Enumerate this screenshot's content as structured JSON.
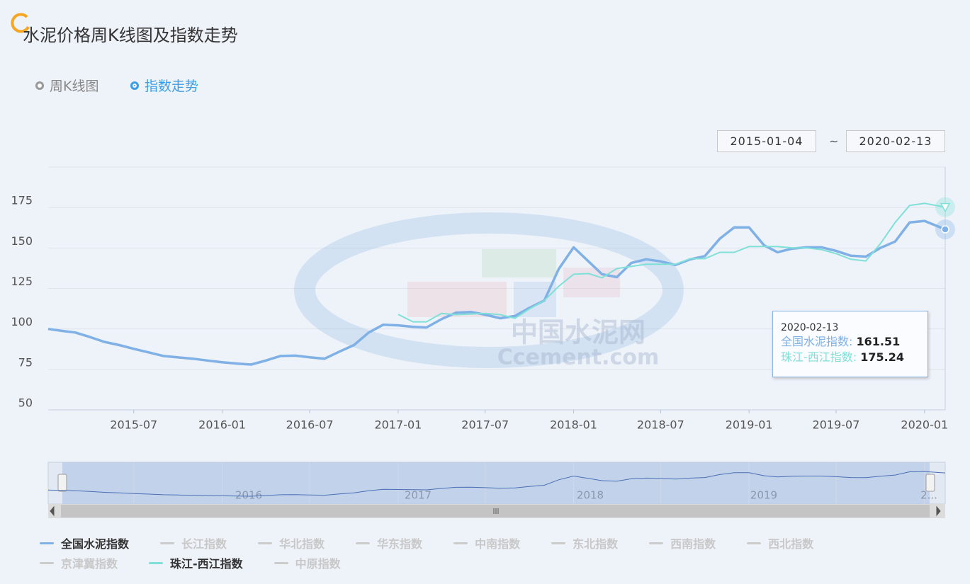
{
  "header": {
    "title": "水泥价格周K线图及指数走势"
  },
  "view_options": [
    "周K线图",
    "指数走势"
  ],
  "date_range_separator": "~",
  "chart_data": {
    "type": "line",
    "x": [
      "2015-01-04",
      "2015-02",
      "2015-03",
      "2015-04",
      "2015-05",
      "2015-06",
      "2015-07",
      "2015-08",
      "2015-09",
      "2015-10",
      "2015-11",
      "2015-12",
      "2016-01",
      "2016-02",
      "2016-03",
      "2016-04",
      "2016-05",
      "2016-06",
      "2016-07",
      "2016-08",
      "2016-09",
      "2016-10",
      "2016-11",
      "2016-12",
      "2017-01",
      "2017-02",
      "2017-03",
      "2017-04",
      "2017-05",
      "2017-06",
      "2017-07",
      "2017-08",
      "2017-09",
      "2017-10",
      "2017-11",
      "2017-12",
      "2018-01",
      "2018-02",
      "2018-03",
      "2018-04",
      "2018-05",
      "2018-06",
      "2018-07",
      "2018-08",
      "2018-09",
      "2018-10",
      "2018-11",
      "2018-12",
      "2019-01",
      "2019-02",
      "2019-03",
      "2019-04",
      "2019-05",
      "2019-06",
      "2019-07",
      "2019-08",
      "2019-09",
      "2019-10",
      "2019-11",
      "2019-12",
      "2020-01",
      "2020-02-13"
    ],
    "series": [
      {
        "name": "全国水泥指数",
        "color": "#7fb0e6",
        "values": [
          100,
          98.8,
          97.8,
          95,
          92,
          90,
          87.7,
          85.5,
          83.3,
          82.4,
          81.6,
          80.5,
          79.4,
          78.6,
          78,
          80.5,
          83.3,
          83.5,
          82.5,
          81.6,
          86,
          90,
          97.8,
          102.6,
          102.2,
          101.3,
          100.9,
          106,
          110,
          110.5,
          108.8,
          106.6,
          108,
          113,
          117.5,
          137,
          150.4,
          141.7,
          133.8,
          132,
          140.8,
          143,
          141.7,
          139.5,
          143,
          145,
          155.7,
          162.7,
          162.7,
          151.7,
          147.4,
          149.6,
          150.4,
          150.4,
          148.2,
          145.2,
          144.7,
          150,
          154,
          165.8,
          166.7,
          161.51
        ]
      },
      {
        "name": "珠江-西江指数",
        "color": "#7fe0d8",
        "values": [
          null,
          null,
          null,
          null,
          null,
          null,
          null,
          null,
          null,
          null,
          null,
          null,
          null,
          null,
          null,
          null,
          null,
          null,
          null,
          null,
          null,
          null,
          null,
          null,
          109,
          104.4,
          104.4,
          109.6,
          108.8,
          109.2,
          109.6,
          108.8,
          106.6,
          112.3,
          117.5,
          126.3,
          133.8,
          134.2,
          131.6,
          137.3,
          138.6,
          140,
          140,
          140,
          143.4,
          143.4,
          147.3,
          147.3,
          150.9,
          150.9,
          150.9,
          150,
          150,
          149,
          146.5,
          143,
          142,
          152.6,
          165.8,
          176.3,
          177.6,
          175.24
        ]
      }
    ],
    "inactive_series": [
      "长江指数",
      "华北指数",
      "华东指数",
      "中南指数",
      "东北指数",
      "西南指数",
      "西北指数",
      "京津冀指数",
      "中原指数"
    ],
    "xlim": [
      "2015-01-04",
      "2020-02-13"
    ],
    "xticks": [
      "2015-07",
      "2016-01",
      "2016-07",
      "2017-01",
      "2017-07",
      "2018-01",
      "2018-07",
      "2019-01",
      "2019-07",
      "2020-01"
    ],
    "ylim": [
      50,
      200
    ],
    "yticks": [
      50,
      75,
      100,
      125,
      150,
      175
    ],
    "grid": true,
    "zoom_labels": [
      "2016",
      "2017",
      "2018",
      "2019",
      "2..."
    ],
    "watermark": [
      "中国水泥网",
      "Ccement.com"
    ]
  }
}
